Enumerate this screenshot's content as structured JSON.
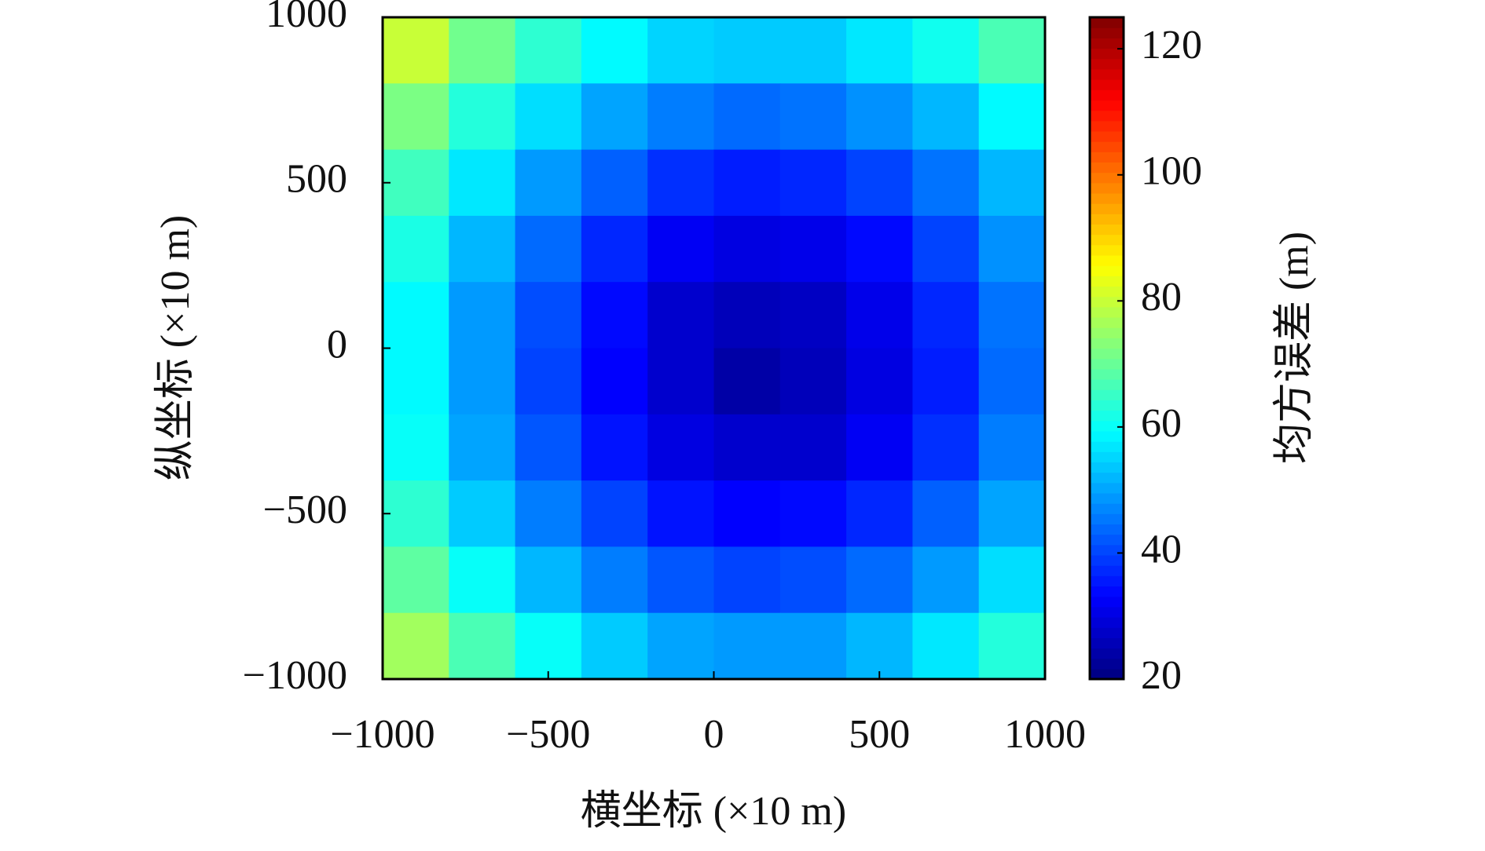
{
  "chart_data": {
    "type": "heatmap",
    "xlabel": "横坐标 (×10 m)",
    "ylabel": "纵坐标 (×10 m)",
    "colorbar_label": "均方误差 (m)",
    "x": [
      -900,
      -700,
      -500,
      -300,
      -100,
      100,
      300,
      500,
      700,
      900
    ],
    "y": [
      900,
      700,
      500,
      300,
      100,
      -100,
      -300,
      -500,
      -700,
      -900
    ],
    "z": [
      [
        80,
        71,
        64,
        59,
        55,
        54,
        54,
        57,
        61,
        67
      ],
      [
        72,
        63,
        56,
        50,
        46,
        44,
        45,
        48,
        52,
        59
      ],
      [
        66,
        57,
        49,
        43,
        38,
        36,
        37,
        40,
        45,
        52
      ],
      [
        62,
        52,
        44,
        37,
        32,
        30,
        31,
        34,
        40,
        48
      ],
      [
        59,
        49,
        41,
        34,
        28,
        26,
        27,
        31,
        37,
        45
      ],
      [
        59,
        49,
        40,
        33,
        28,
        24,
        26,
        30,
        36,
        44
      ],
      [
        60,
        50,
        42,
        35,
        30,
        28,
        28,
        32,
        38,
        46
      ],
      [
        64,
        54,
        46,
        40,
        35,
        33,
        34,
        37,
        43,
        50
      ],
      [
        69,
        60,
        52,
        46,
        42,
        40,
        41,
        44,
        49,
        56
      ],
      [
        76,
        67,
        60,
        54,
        50,
        49,
        49,
        52,
        57,
        63
      ]
    ],
    "xlim": [
      -1000,
      1000
    ],
    "ylim": [
      -1000,
      1000
    ],
    "xticks": [
      {
        "value": -1000,
        "label": "−1000"
      },
      {
        "value": -500,
        "label": "−500"
      },
      0,
      500,
      1000
    ],
    "yticks": [
      {
        "value": -1000,
        "label": "−1000"
      },
      {
        "value": -500,
        "label": "−500"
      },
      0,
      500,
      1000
    ],
    "clim": [
      20,
      125
    ],
    "cticks": [
      20,
      40,
      60,
      80,
      100,
      120
    ],
    "colormap": "jet"
  }
}
